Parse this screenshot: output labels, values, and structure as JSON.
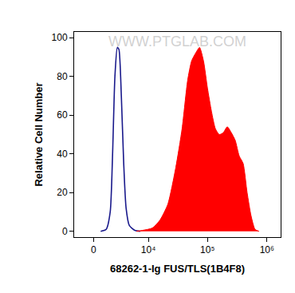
{
  "chart_data": {
    "type": "line",
    "x_label": "68262-1-Ig FUS/TLS(1B4F8)",
    "y_label": "Relative Cell Number",
    "annotations": [
      "WWW.PTGLAB.COM"
    ],
    "xlim": [
      -2000,
      1700000
    ],
    "xticks": [
      0,
      {
        "value": 10000,
        "label": "10⁴"
      },
      {
        "value": 100000,
        "label": "10⁵"
      },
      {
        "value": 1000000,
        "label": "10⁶"
      }
    ],
    "ylim": [
      -3,
      103
    ],
    "yticks": [
      0,
      20,
      40,
      60,
      80,
      100
    ],
    "grid": false,
    "series": [
      {
        "type": "line",
        "color": "#1a1a8c",
        "x": [
          680,
          1240,
          1680,
          1960,
          2250,
          2570,
          2790,
          3150,
          3530,
          3940,
          4550,
          5740,
          7220
        ],
        "values": [
          0,
          1,
          10,
          40,
          80,
          95,
          94,
          70,
          35,
          12,
          3,
          0.5,
          0
        ]
      },
      {
        "type": "area",
        "color": "#ff0000",
        "x": [
          6150,
          11700,
          15800,
          21500,
          29300,
          37400,
          46400,
          54100,
          63100,
          73600,
          85800,
          100000,
          116700,
          136000,
          158500,
          184800,
          215400,
          251200,
          292900,
          341300,
          398100,
          464200,
          541100,
          630900,
          735600
        ],
        "values": [
          0,
          1.7,
          5.8,
          14,
          33,
          53,
          78,
          88,
          92,
          95,
          88,
          74,
          62,
          53,
          50,
          51,
          54,
          51,
          47,
          39,
          35,
          20,
          8,
          1,
          0
        ]
      }
    ]
  }
}
